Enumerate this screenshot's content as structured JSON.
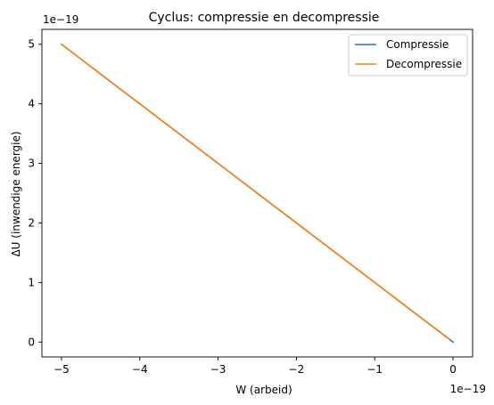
{
  "chart_data": {
    "type": "line",
    "title": "Cyclus: compressie en decompressie",
    "xlabel": "W (arbeid)",
    "ylabel": "ΔU (inwendige energie)",
    "x_offset_text": "1e−19",
    "y_offset_text": "1e−19",
    "x_scale": 1e-19,
    "y_scale": 1e-19,
    "xlim": [
      -5.25e-19,
      2.5e-20
    ],
    "ylim": [
      -2.5e-20,
      5.25e-19
    ],
    "xticks": [
      {
        "value": -5e-19,
        "label": "−5"
      },
      {
        "value": -4e-19,
        "label": "−4"
      },
      {
        "value": -3e-19,
        "label": "−3"
      },
      {
        "value": -2e-19,
        "label": "−2"
      },
      {
        "value": -1e-19,
        "label": "−1"
      },
      {
        "value": 0,
        "label": "0"
      }
    ],
    "yticks": [
      {
        "value": 0,
        "label": "0"
      },
      {
        "value": 1e-19,
        "label": "1"
      },
      {
        "value": 2e-19,
        "label": "2"
      },
      {
        "value": 3e-19,
        "label": "3"
      },
      {
        "value": 4e-19,
        "label": "4"
      },
      {
        "value": 5e-19,
        "label": "5"
      }
    ],
    "grid": false,
    "legend_position": "top-right",
    "series": [
      {
        "name": "Compressie",
        "color": "#1f77b4",
        "x": [
          0,
          -5e-19
        ],
        "y": [
          0,
          5e-19
        ]
      },
      {
        "name": "Decompressie",
        "color": "#ff7f0e",
        "x": [
          -5e-19,
          -5e-21
        ],
        "y": [
          5e-19,
          5e-21
        ]
      }
    ]
  }
}
